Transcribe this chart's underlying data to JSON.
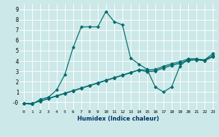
{
  "xlabel": "Humidex (Indice chaleur)",
  "xlim": [
    -0.5,
    23.5
  ],
  "ylim": [
    -0.7,
    9.5
  ],
  "xticks": [
    0,
    1,
    2,
    3,
    4,
    5,
    6,
    7,
    8,
    9,
    10,
    11,
    12,
    13,
    14,
    15,
    16,
    17,
    18,
    19,
    20,
    21,
    22,
    23
  ],
  "yticks": [
    0,
    1,
    2,
    3,
    4,
    5,
    6,
    7,
    8,
    9
  ],
  "ytick_labels": [
    "-0",
    "1",
    "2",
    "3",
    "4",
    "5",
    "6",
    "7",
    "8",
    "9"
  ],
  "bg_color": "#cce8e8",
  "line_color": "#006b6b",
  "line1_x": [
    0,
    1,
    2,
    3,
    4,
    5,
    6,
    7,
    8,
    9,
    10,
    11,
    12,
    13,
    14,
    15,
    16,
    17,
    18,
    19,
    20,
    21,
    22,
    23
  ],
  "line1_y": [
    -0.1,
    -0.2,
    0.3,
    0.5,
    1.2,
    2.7,
    5.3,
    7.3,
    7.3,
    7.3,
    8.8,
    7.8,
    7.5,
    4.3,
    3.7,
    3.2,
    1.5,
    1.0,
    1.5,
    3.5,
    4.2,
    4.2,
    4.1,
    4.7
  ],
  "line2_x": [
    0,
    1,
    2,
    3,
    4,
    5,
    6,
    7,
    8,
    9,
    10,
    11,
    12,
    13,
    14,
    15,
    16,
    17,
    18,
    19,
    20,
    21,
    22,
    23
  ],
  "line2_y": [
    -0.1,
    -0.1,
    0.15,
    0.4,
    0.65,
    0.9,
    1.15,
    1.4,
    1.65,
    1.9,
    2.15,
    2.4,
    2.65,
    2.9,
    3.15,
    3.15,
    3.2,
    3.5,
    3.75,
    3.95,
    4.2,
    4.2,
    4.1,
    4.5
  ],
  "line3_x": [
    0,
    1,
    2,
    3,
    4,
    5,
    6,
    7,
    8,
    9,
    10,
    11,
    12,
    13,
    14,
    15,
    16,
    17,
    18,
    19,
    20,
    21,
    22,
    23
  ],
  "line3_y": [
    -0.1,
    -0.1,
    0.12,
    0.37,
    0.62,
    0.87,
    1.12,
    1.37,
    1.62,
    1.87,
    2.12,
    2.37,
    2.62,
    2.87,
    3.12,
    3.05,
    3.1,
    3.4,
    3.65,
    3.85,
    4.1,
    4.15,
    4.05,
    4.45
  ],
  "line4_x": [
    0,
    1,
    2,
    3,
    4,
    5,
    6,
    7,
    8,
    9,
    10,
    11,
    12,
    13,
    14,
    15,
    16,
    17,
    18,
    19,
    20,
    21,
    22,
    23
  ],
  "line4_y": [
    -0.1,
    -0.1,
    0.1,
    0.35,
    0.6,
    0.85,
    1.1,
    1.35,
    1.6,
    1.85,
    2.1,
    2.35,
    2.6,
    2.85,
    3.1,
    2.95,
    3.0,
    3.3,
    3.55,
    3.75,
    4.0,
    4.1,
    4.0,
    4.4
  ]
}
